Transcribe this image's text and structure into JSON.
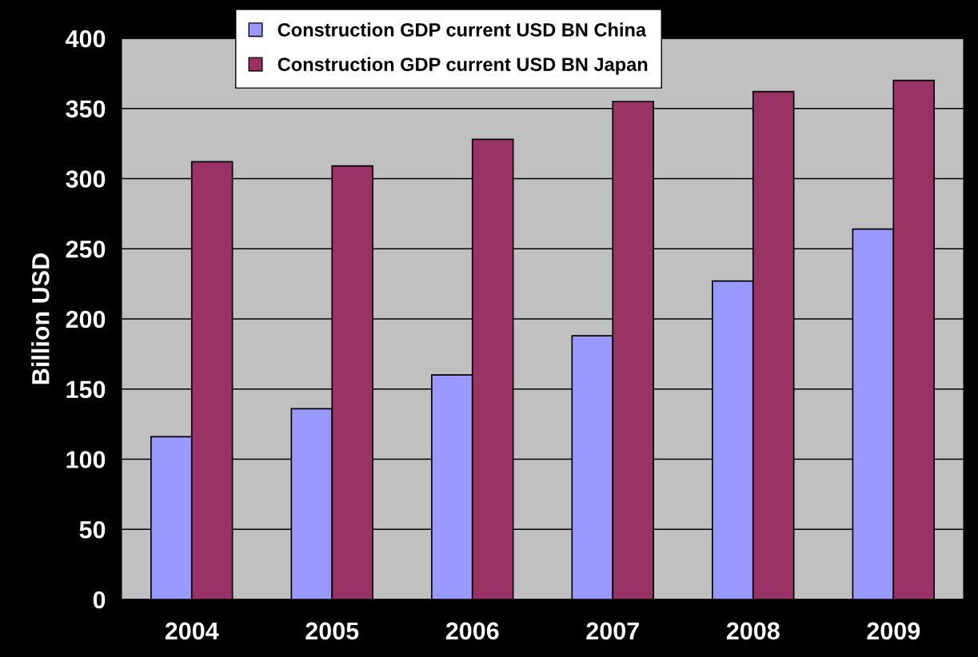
{
  "chart_data": {
    "type": "bar",
    "ylabel": "Billion USD",
    "categories": [
      "2004",
      "2005",
      "2006",
      "2007",
      "2008",
      "2009"
    ],
    "series": [
      {
        "name": "Construction GDP current USD BN China",
        "color": "#9999ff",
        "values": [
          116,
          136,
          160,
          188,
          227,
          264
        ]
      },
      {
        "name": "Construction GDP current USD BN Japan",
        "color": "#993366",
        "values": [
          312,
          309,
          328,
          355,
          362,
          370
        ]
      }
    ],
    "ylim": [
      0,
      400
    ],
    "yticks": [
      0,
      50,
      100,
      150,
      200,
      250,
      300,
      350,
      400
    ],
    "grid": "y",
    "legend": "top"
  }
}
